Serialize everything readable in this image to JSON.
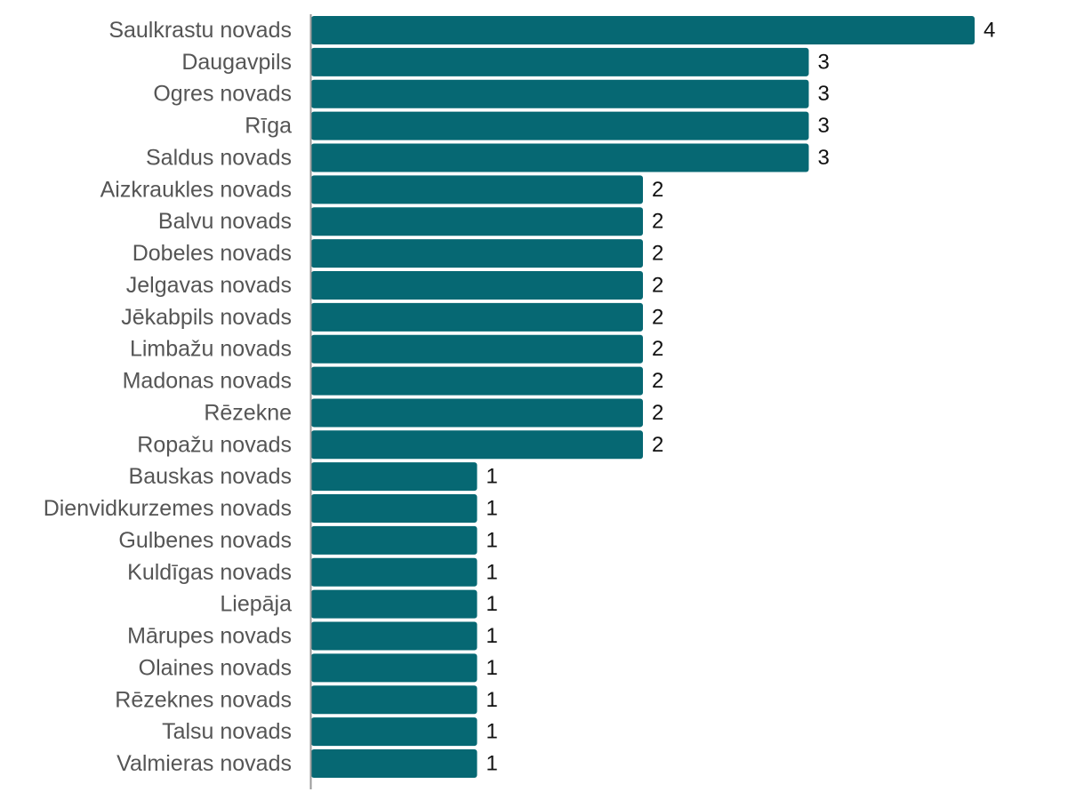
{
  "chart_data": {
    "type": "bar",
    "orientation": "horizontal",
    "categories": [
      "Saulkrastu novads",
      "Daugavpils",
      "Ogres novads",
      "Rīga",
      "Saldus novads",
      "Aizkraukles novads",
      "Balvu novads",
      "Dobeles novads",
      "Jelgavas novads",
      "Jēkabpils novads",
      "Limbažu novads",
      "Madonas novads",
      "Rēzekne",
      "Ropažu novads",
      "Bauskas novads",
      "Dienvidkurzemes novads",
      "Gulbenes novads",
      "Kuldīgas novads",
      "Liepāja",
      "Mārupes novads",
      "Olaines novads",
      "Rēzeknes novads",
      "Talsu novads",
      "Valmieras novads"
    ],
    "values": [
      4,
      3,
      3,
      3,
      3,
      2,
      2,
      2,
      2,
      2,
      2,
      2,
      2,
      2,
      1,
      1,
      1,
      1,
      1,
      1,
      1,
      1,
      1,
      1
    ],
    "title": "",
    "xlabel": "",
    "ylabel": "",
    "xlim": [
      0,
      4
    ],
    "grid": false,
    "legend": "none",
    "data_labels": true,
    "colors": {
      "bar": "#066873",
      "axis": "#999999",
      "category_text": "#555555",
      "value_text": "#111111"
    }
  }
}
